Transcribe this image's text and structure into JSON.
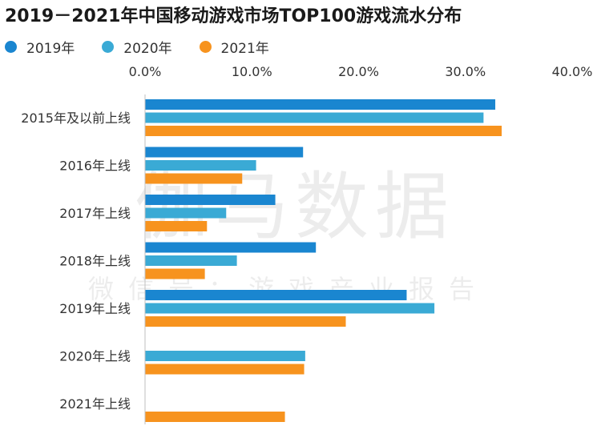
{
  "chart_data": {
    "type": "bar",
    "orientation": "horizontal",
    "title": "2019－2021年中国移动游戏市场TOP100游戏流水分布",
    "categories": [
      "2015年及以前上线",
      "2016年上线",
      "2017年上线",
      "2018年上线",
      "2019年上线",
      "2020年上线",
      "2021年上线"
    ],
    "series": [
      {
        "name": "2019年",
        "color": "#1a86d0",
        "values": [
          32.8,
          14.8,
          12.2,
          16.0,
          24.5,
          null,
          null
        ]
      },
      {
        "name": "2020年",
        "color": "#3aaad5",
        "values": [
          31.7,
          10.4,
          7.6,
          8.6,
          27.1,
          15.0,
          null
        ]
      },
      {
        "name": "2021年",
        "color": "#f7931e",
        "values": [
          33.4,
          9.1,
          5.8,
          5.6,
          18.8,
          14.9,
          13.1
        ]
      }
    ],
    "xlim": [
      0,
      40
    ],
    "ticks": [
      0,
      10,
      20,
      30,
      40
    ],
    "tick_labels": [
      "0.0%",
      "10.0%",
      "20.0%",
      "30.0%",
      "40.0%"
    ],
    "legend_position": "top-left",
    "xaxis_position": "top",
    "grid": false
  },
  "watermark": {
    "main": "伽马数据",
    "sub": "微信号：游戏产业报告"
  }
}
